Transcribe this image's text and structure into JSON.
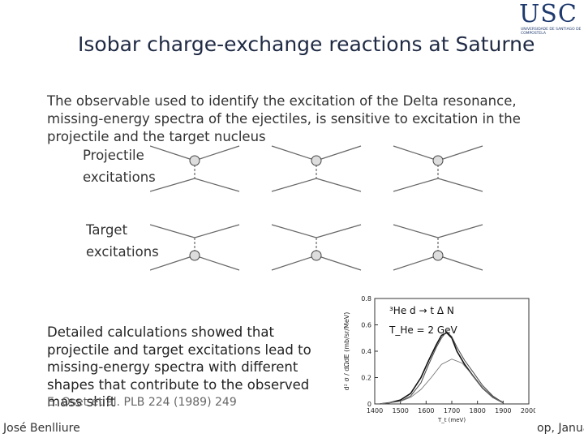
{
  "logo": {
    "text": "USC",
    "subtitle": "UNIVERSIDADE DE SANTIAGO DE COMPOSTELA"
  },
  "slide": {
    "title": "Isobar charge-exchange reactions at Saturne",
    "intro": "The observable used to identify the excitation of the Delta resonance, missing-energy spectra of the ejectiles, is sensitive to excitation in the projectile and the target nucleus",
    "projectile_label": [
      "Projectile",
      "excitations"
    ],
    "target_label": [
      "Target",
      "excitations"
    ],
    "detail": "Detailed calculations showed that projectile and target excitations lead to missing-energy spectra with different shapes that contribute to the observed mass shift",
    "citation": "E. Oset et al. PLB 224 (1989) 249",
    "author": "José Benlliure",
    "footer_right": "op, Janua"
  },
  "colors": {
    "logo": "#1f3a6e",
    "title": "#1f2a44",
    "plot_bg": "#ffffff"
  },
  "chart_data": {
    "type": "line",
    "reaction": "³He d → t Δ N",
    "energy": "T_He = 2 GeV",
    "ylabel": "d² σ / dΩdE (mb/sr/MeV)",
    "xlabel": "T_t (meV)",
    "xlim": [
      1400,
      2000
    ],
    "ylim": [
      0,
      0.8
    ],
    "xticks": [
      1400,
      1500,
      1600,
      1700,
      1800,
      1900,
      2000
    ],
    "yticks": [
      0,
      0.2,
      0.4,
      0.6,
      0.8
    ],
    "series": [
      {
        "name": "",
        "x": [
          1420,
          1460,
          1500,
          1540,
          1580,
          1610,
          1640,
          1660,
          1680,
          1700,
          1720,
          1750,
          1780,
          1820,
          1860,
          1900
        ],
        "y": [
          0.0,
          0.01,
          0.03,
          0.08,
          0.2,
          0.33,
          0.45,
          0.52,
          0.54,
          0.5,
          0.4,
          0.3,
          0.22,
          0.12,
          0.05,
          0.01
        ]
      },
      {
        "name": "",
        "x": [
          1420,
          1460,
          1500,
          1540,
          1580,
          1610,
          1640,
          1660,
          1680,
          1700,
          1720,
          1750,
          1780,
          1820,
          1860,
          1900
        ],
        "y": [
          0.0,
          0.01,
          0.02,
          0.06,
          0.16,
          0.3,
          0.43,
          0.5,
          0.55,
          0.51,
          0.43,
          0.33,
          0.25,
          0.14,
          0.06,
          0.01
        ]
      },
      {
        "name": "",
        "x": [
          1420,
          1460,
          1500,
          1540,
          1580,
          1620,
          1660,
          1700,
          1740,
          1780,
          1820,
          1860,
          1900
        ],
        "y": [
          0.0,
          0.01,
          0.02,
          0.05,
          0.11,
          0.2,
          0.3,
          0.34,
          0.31,
          0.22,
          0.12,
          0.05,
          0.01
        ]
      }
    ]
  }
}
